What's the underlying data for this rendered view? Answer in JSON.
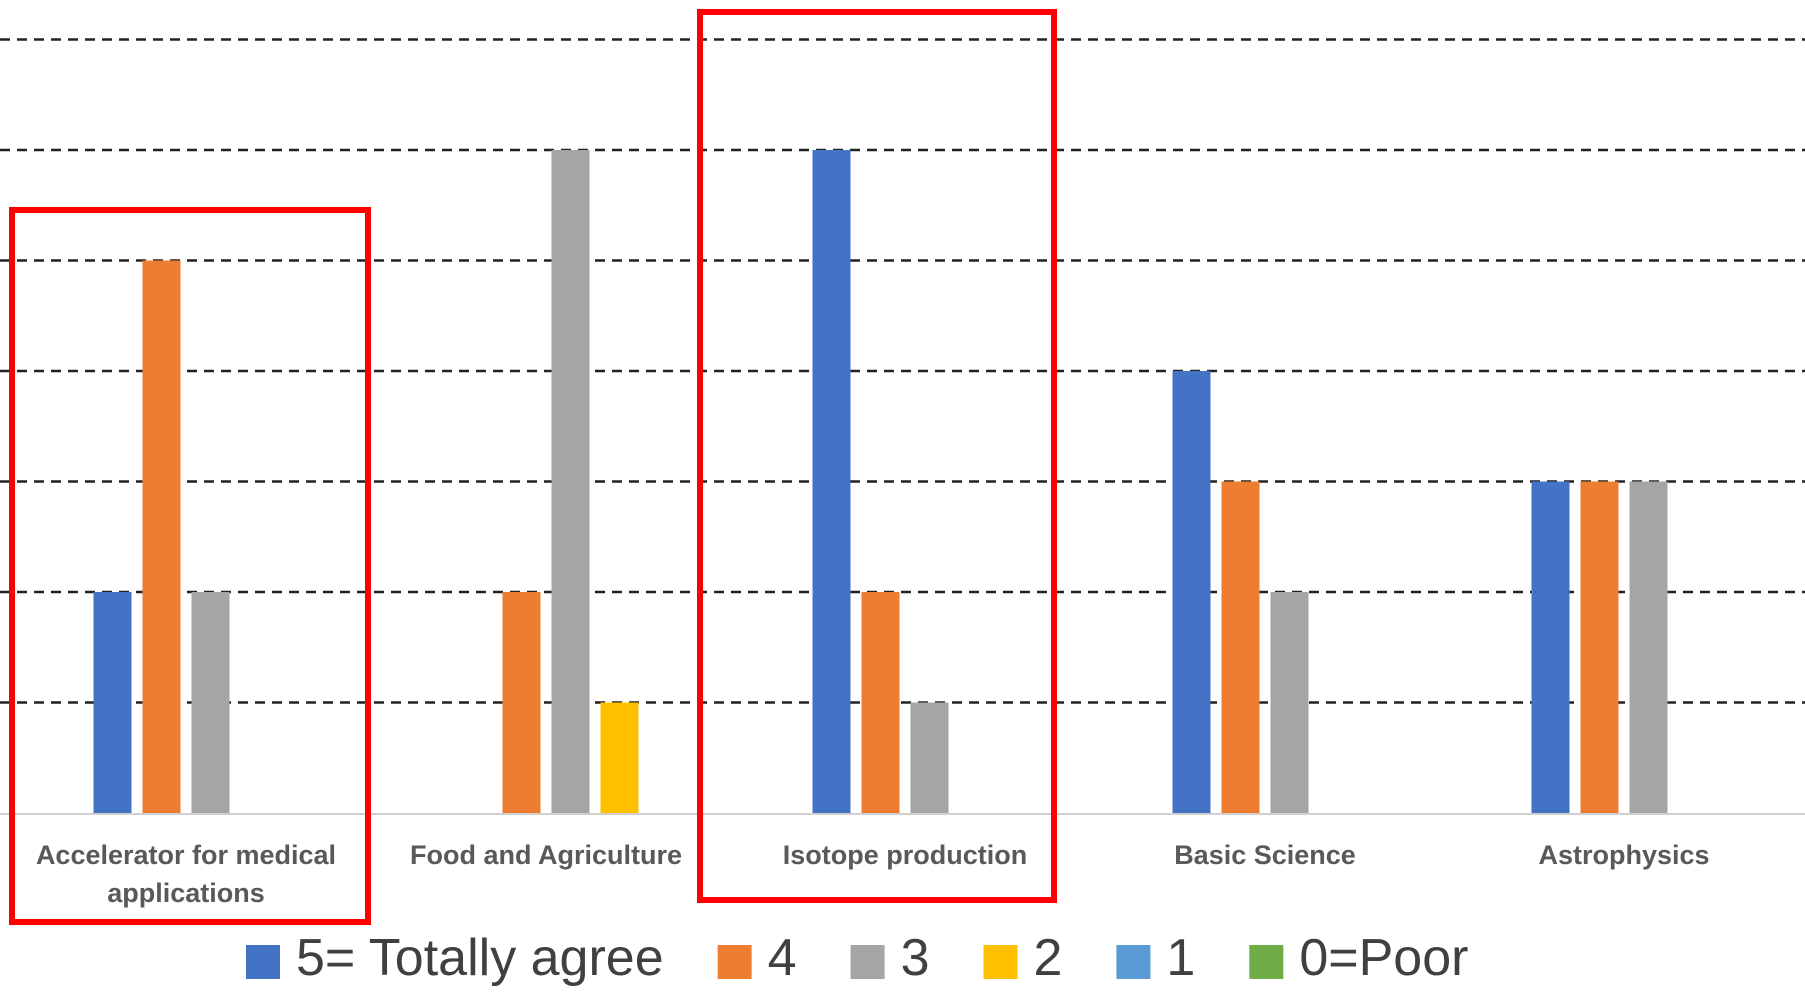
{
  "chart_data": {
    "type": "bar",
    "categories": [
      [
        "Accelerator for medical",
        "applications"
      ],
      [
        "Food and Agriculture"
      ],
      [
        "Isotope production"
      ],
      [
        "Basic Science"
      ],
      [
        "Astrophysics"
      ]
    ],
    "series": [
      {
        "name": "5= Totally agree",
        "color": "#4472C4",
        "values": [
          2,
          0,
          6,
          4,
          3
        ]
      },
      {
        "name": "4",
        "color": "#ED7D31",
        "values": [
          5,
          2,
          2,
          3,
          3
        ]
      },
      {
        "name": "3",
        "color": "#A5A5A5",
        "values": [
          2,
          6,
          1,
          2,
          3
        ]
      },
      {
        "name": "2",
        "color": "#FFC000",
        "values": [
          0,
          1,
          0,
          0,
          0
        ]
      },
      {
        "name": "1",
        "color": "#5B9BD5",
        "values": [
          0,
          0,
          0,
          0,
          0
        ]
      },
      {
        "name": "0=Poor",
        "color": "#70AD47",
        "values": [
          0,
          0,
          0,
          0,
          0
        ]
      }
    ],
    "ylim": [
      0,
      7
    ],
    "grid": true,
    "grid_style": "dashed",
    "legend_position": "bottom",
    "highlighted_categories": [
      0,
      2
    ],
    "highlight_color": "#FF0000"
  }
}
